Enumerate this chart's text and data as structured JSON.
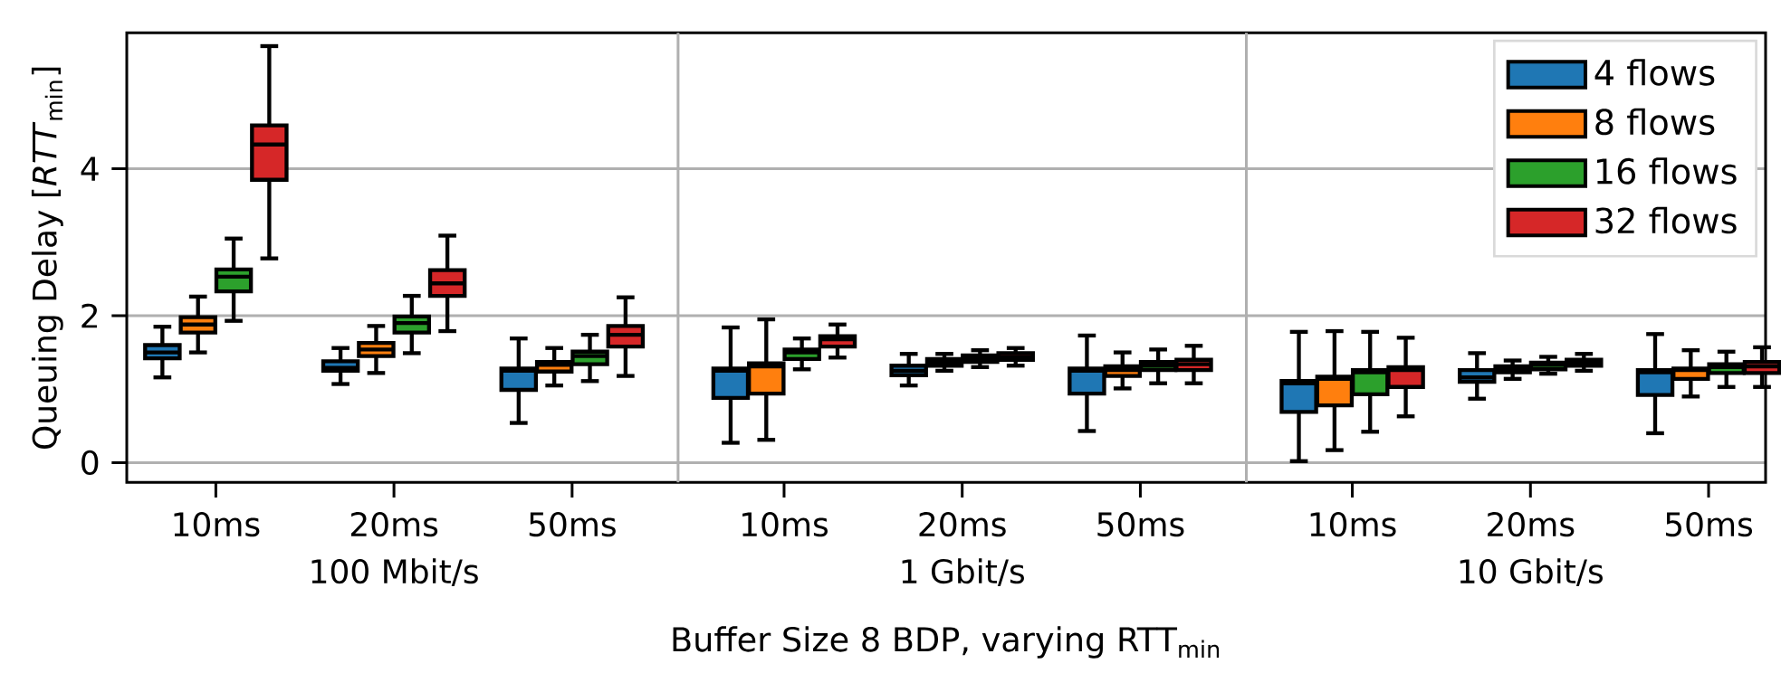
{
  "chart_data": {
    "type": "box",
    "xlabel": "Buffer Size 8 BDP, varying RTT$_{min}$",
    "ylabel": "Queuing Delay [*RTT*$_{min}$]",
    "categories": [
      "10ms",
      "20ms",
      "50ms",
      "10ms",
      "20ms",
      "50ms",
      "10ms",
      "20ms",
      "50ms"
    ],
    "annotations": [
      "100 Mbit/s",
      "1 Gbit/s",
      "10 Gbit/s"
    ],
    "ylim": [
      -0.27,
      5.85
    ],
    "yticks": [
      0,
      2,
      4
    ],
    "grid": "y",
    "legend": "top right",
    "series": [
      {
        "name": "4 flows",
        "color": "#1f77b4",
        "boxes": [
          {
            "low": 1.16,
            "q1": 1.42,
            "median": 1.5,
            "q3": 1.6,
            "high": 1.85
          },
          {
            "low": 1.07,
            "q1": 1.25,
            "median": 1.29,
            "q3": 1.38,
            "high": 1.56
          },
          {
            "low": 0.54,
            "q1": 0.99,
            "median": 1.25,
            "q3": 1.28,
            "high": 1.69
          },
          {
            "low": 0.27,
            "q1": 0.88,
            "median": 1.25,
            "q3": 1.28,
            "high": 1.84
          },
          {
            "low": 1.05,
            "q1": 1.19,
            "median": 1.25,
            "q3": 1.32,
            "high": 1.48
          },
          {
            "low": 0.43,
            "q1": 0.94,
            "median": 1.25,
            "q3": 1.28,
            "high": 1.73
          },
          {
            "low": 0.02,
            "q1": 0.69,
            "median": 1.08,
            "q3": 1.11,
            "high": 1.78
          },
          {
            "low": 0.87,
            "q1": 1.1,
            "median": 1.16,
            "q3": 1.26,
            "high": 1.49
          },
          {
            "low": 0.4,
            "q1": 0.92,
            "median": 1.23,
            "q3": 1.26,
            "high": 1.75
          }
        ]
      },
      {
        "name": "8 flows",
        "color": "#ff7f0e",
        "boxes": [
          {
            "low": 1.5,
            "q1": 1.77,
            "median": 1.88,
            "q3": 1.98,
            "high": 2.26
          },
          {
            "low": 1.22,
            "q1": 1.45,
            "median": 1.54,
            "q3": 1.63,
            "high": 1.86
          },
          {
            "low": 1.05,
            "q1": 1.24,
            "median": 1.33,
            "q3": 1.37,
            "high": 1.56
          },
          {
            "low": 0.31,
            "q1": 0.94,
            "median": 1.31,
            "q3": 1.35,
            "high": 1.95
          },
          {
            "low": 1.25,
            "q1": 1.32,
            "median": 1.36,
            "q3": 1.41,
            "high": 1.48
          },
          {
            "low": 1.01,
            "q1": 1.18,
            "median": 1.26,
            "q3": 1.31,
            "high": 1.5
          },
          {
            "low": 0.17,
            "q1": 0.78,
            "median": 1.14,
            "q3": 1.17,
            "high": 1.79
          },
          {
            "low": 1.14,
            "q1": 1.23,
            "median": 1.27,
            "q3": 1.31,
            "high": 1.39
          },
          {
            "low": 0.9,
            "q1": 1.14,
            "median": 1.26,
            "q3": 1.28,
            "high": 1.53
          }
        ]
      },
      {
        "name": "16 flows",
        "color": "#2ca02c",
        "boxes": [
          {
            "low": 1.93,
            "q1": 2.33,
            "median": 2.53,
            "q3": 2.63,
            "high": 3.05
          },
          {
            "low": 1.49,
            "q1": 1.77,
            "median": 1.9,
            "q3": 1.99,
            "high": 2.27
          },
          {
            "low": 1.11,
            "q1": 1.34,
            "median": 1.45,
            "q3": 1.51,
            "high": 1.74
          },
          {
            "low": 1.27,
            "q1": 1.41,
            "median": 1.5,
            "q3": 1.54,
            "high": 1.69
          },
          {
            "low": 1.3,
            "q1": 1.37,
            "median": 1.42,
            "q3": 1.46,
            "high": 1.53
          },
          {
            "low": 1.08,
            "q1": 1.26,
            "median": 1.32,
            "q3": 1.37,
            "high": 1.54
          },
          {
            "low": 0.42,
            "q1": 0.93,
            "median": 1.23,
            "q3": 1.26,
            "high": 1.78
          },
          {
            "low": 1.21,
            "q1": 1.27,
            "median": 1.33,
            "q3": 1.36,
            "high": 1.44
          },
          {
            "low": 1.03,
            "q1": 1.22,
            "median": 1.3,
            "q3": 1.34,
            "high": 1.51
          }
        ]
      },
      {
        "name": "32 flows",
        "color": "#d62728",
        "boxes": [
          {
            "low": 2.78,
            "q1": 3.85,
            "median": 4.33,
            "q3": 4.59,
            "high": 5.67
          },
          {
            "low": 1.79,
            "q1": 2.27,
            "median": 2.44,
            "q3": 2.62,
            "high": 3.09
          },
          {
            "low": 1.18,
            "q1": 1.58,
            "median": 1.74,
            "q3": 1.86,
            "high": 2.25
          },
          {
            "low": 1.43,
            "q1": 1.58,
            "median": 1.68,
            "q3": 1.72,
            "high": 1.88
          },
          {
            "low": 1.32,
            "q1": 1.4,
            "median": 1.44,
            "q3": 1.49,
            "high": 1.56
          },
          {
            "low": 1.08,
            "q1": 1.26,
            "median": 1.34,
            "q3": 1.4,
            "high": 1.59
          },
          {
            "low": 0.63,
            "q1": 1.03,
            "median": 1.26,
            "q3": 1.3,
            "high": 1.7
          },
          {
            "low": 1.25,
            "q1": 1.32,
            "median": 1.37,
            "q3": 1.4,
            "high": 1.48
          },
          {
            "low": 1.03,
            "q1": 1.22,
            "median": 1.31,
            "q3": 1.37,
            "high": 1.57
          }
        ]
      }
    ]
  }
}
